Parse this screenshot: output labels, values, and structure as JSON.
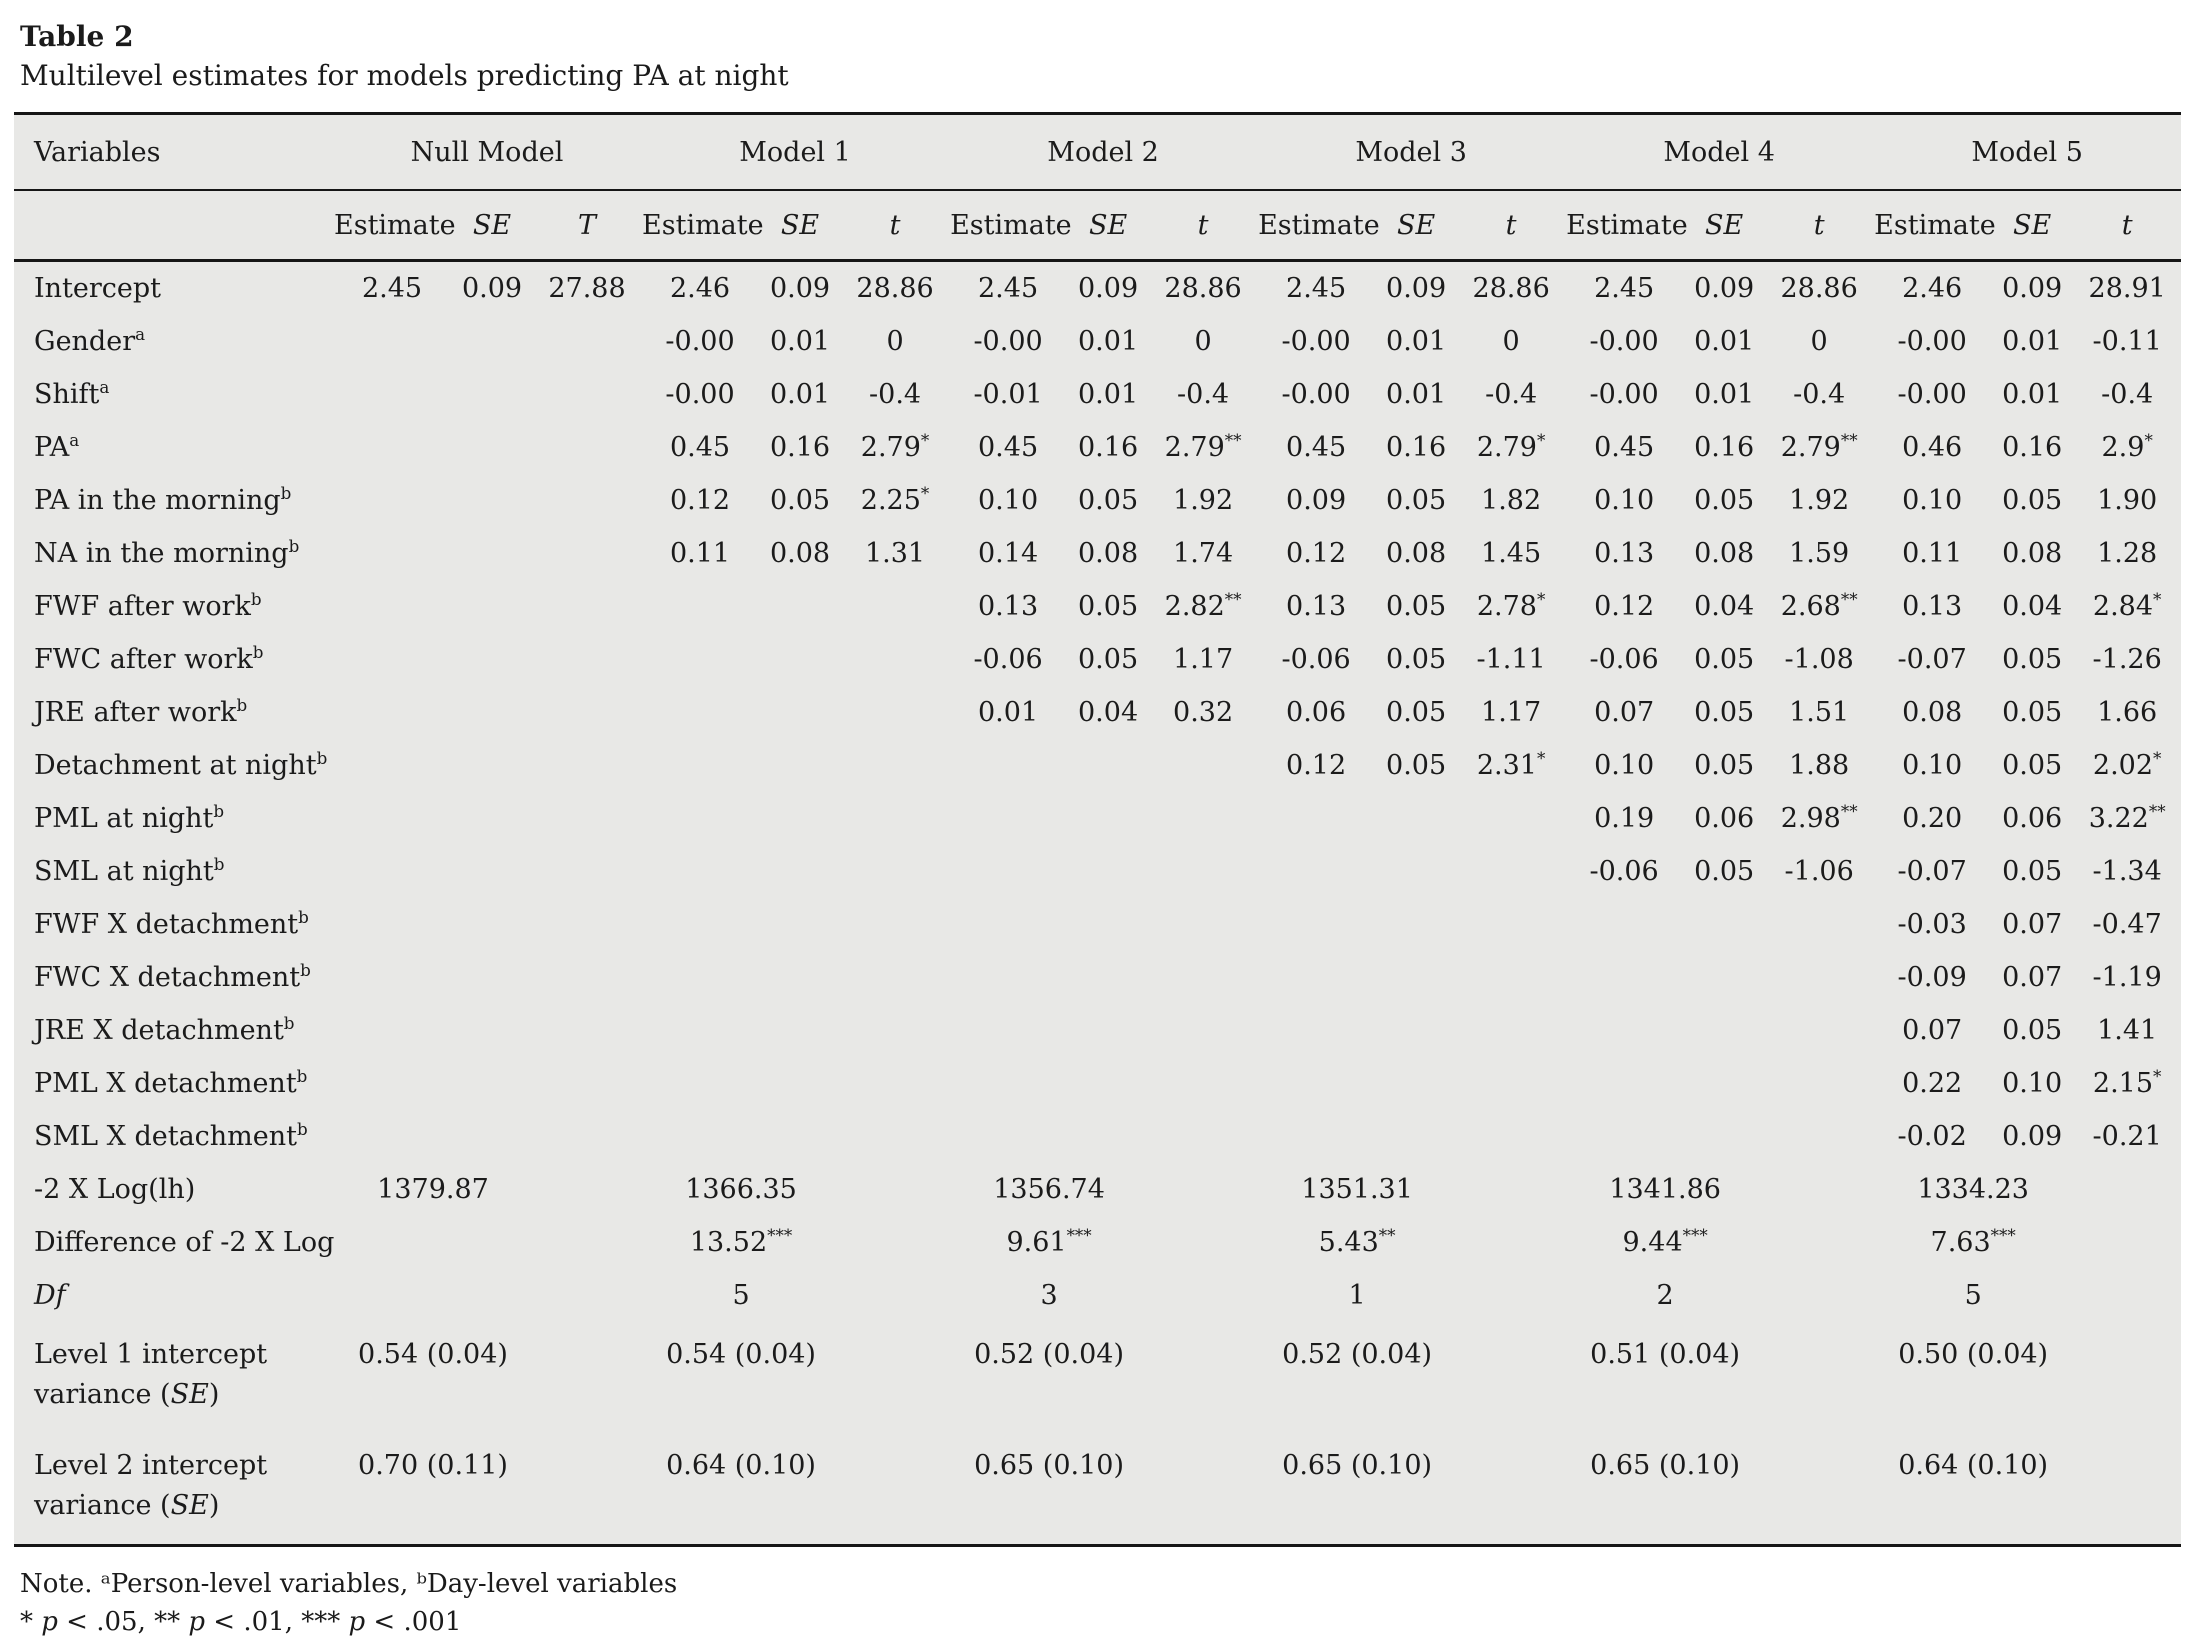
{
  "title": "Table 2",
  "subtitle": "Multilevel estimates for models predicting PA at night",
  "table": {
    "variables_header": "Variables",
    "groups": [
      {
        "name": "Null Model",
        "cols": [
          "Estimate",
          "SE",
          "T"
        ]
      },
      {
        "name": "Model 1",
        "cols": [
          "Estimate",
          "SE",
          "t"
        ]
      },
      {
        "name": "Model 2",
        "cols": [
          "Estimate",
          "SE",
          "t"
        ]
      },
      {
        "name": "Model 3",
        "cols": [
          "Estimate",
          "SE",
          "t"
        ]
      },
      {
        "name": "Model 4",
        "cols": [
          "Estimate",
          "SE",
          "t"
        ]
      },
      {
        "name": "Model 5",
        "cols": [
          "Estimate",
          "SE",
          "t"
        ]
      }
    ],
    "coefficient_rows": [
      {
        "label": "Intercept",
        "sup": "",
        "cells": [
          [
            "2.45",
            "0.09",
            "27.88"
          ],
          [
            "2.46",
            "0.09",
            "28.86"
          ],
          [
            "2.45",
            "0.09",
            "28.86"
          ],
          [
            "2.45",
            "0.09",
            "28.86"
          ],
          [
            "2.45",
            "0.09",
            "28.86"
          ],
          [
            "2.46",
            "0.09",
            "28.91"
          ]
        ]
      },
      {
        "label": "Gender",
        "sup": "a",
        "cells": [
          null,
          [
            "-0.00",
            "0.01",
            "0"
          ],
          [
            "-0.00",
            "0.01",
            "0"
          ],
          [
            "-0.00",
            "0.01",
            "0"
          ],
          [
            "-0.00",
            "0.01",
            "0"
          ],
          [
            "-0.00",
            "0.01",
            "-0.11"
          ]
        ]
      },
      {
        "label": "Shift",
        "sup": "a",
        "cells": [
          null,
          [
            "-0.00",
            "0.01",
            "-0.4"
          ],
          [
            "-0.01",
            "0.01",
            "-0.4"
          ],
          [
            "-0.00",
            "0.01",
            "-0.4"
          ],
          [
            "-0.00",
            "0.01",
            "-0.4"
          ],
          [
            "-0.00",
            "0.01",
            "-0.4"
          ]
        ]
      },
      {
        "label": "PA",
        "sup": "a",
        "cells": [
          null,
          [
            "0.45",
            "0.16",
            "2.79*"
          ],
          [
            "0.45",
            "0.16",
            "2.79**"
          ],
          [
            "0.45",
            "0.16",
            "2.79*"
          ],
          [
            "0.45",
            "0.16",
            "2.79**"
          ],
          [
            "0.46",
            "0.16",
            "2.9*"
          ]
        ]
      },
      {
        "label": "PA in the morning",
        "sup": "b",
        "cells": [
          null,
          [
            "0.12",
            "0.05",
            "2.25*"
          ],
          [
            "0.10",
            "0.05",
            "1.92"
          ],
          [
            "0.09",
            "0.05",
            "1.82"
          ],
          [
            "0.10",
            "0.05",
            "1.92"
          ],
          [
            "0.10",
            "0.05",
            "1.90"
          ]
        ]
      },
      {
        "label": "NA in the morning",
        "sup": "b",
        "cells": [
          null,
          [
            "0.11",
            "0.08",
            "1.31"
          ],
          [
            "0.14",
            "0.08",
            "1.74"
          ],
          [
            "0.12",
            "0.08",
            "1.45"
          ],
          [
            "0.13",
            "0.08",
            "1.59"
          ],
          [
            "0.11",
            "0.08",
            "1.28"
          ]
        ]
      },
      {
        "label": "FWF after work",
        "sup": "b",
        "cells": [
          null,
          null,
          [
            "0.13",
            "0.05",
            "2.82**"
          ],
          [
            "0.13",
            "0.05",
            "2.78*"
          ],
          [
            "0.12",
            "0.04",
            "2.68**"
          ],
          [
            "0.13",
            "0.04",
            "2.84*"
          ]
        ]
      },
      {
        "label": "FWC after work",
        "sup": "b",
        "cells": [
          null,
          null,
          [
            "-0.06",
            "0.05",
            "1.17"
          ],
          [
            "-0.06",
            "0.05",
            "-1.11"
          ],
          [
            "-0.06",
            "0.05",
            "-1.08"
          ],
          [
            "-0.07",
            "0.05",
            "-1.26"
          ]
        ]
      },
      {
        "label": "JRE after work",
        "sup": "b",
        "cells": [
          null,
          null,
          [
            "0.01",
            "0.04",
            "0.32"
          ],
          [
            "0.06",
            "0.05",
            "1.17"
          ],
          [
            "0.07",
            "0.05",
            "1.51"
          ],
          [
            "0.08",
            "0.05",
            "1.66"
          ]
        ]
      },
      {
        "label": "Detachment at night",
        "sup": "b",
        "cells": [
          null,
          null,
          null,
          [
            "0.12",
            "0.05",
            "2.31*"
          ],
          [
            "0.10",
            "0.05",
            "1.88"
          ],
          [
            "0.10",
            "0.05",
            "2.02*"
          ]
        ]
      },
      {
        "label": "PML at night",
        "sup": "b",
        "cells": [
          null,
          null,
          null,
          null,
          [
            "0.19",
            "0.06",
            "2.98**"
          ],
          [
            "0.20",
            "0.06",
            "3.22**"
          ]
        ]
      },
      {
        "label": "SML at night",
        "sup": "b",
        "cells": [
          null,
          null,
          null,
          null,
          [
            "-0.06",
            "0.05",
            "-1.06"
          ],
          [
            "-0.07",
            "0.05",
            "-1.34"
          ]
        ]
      },
      {
        "label": "FWF X detachment",
        "sup": "b",
        "cells": [
          null,
          null,
          null,
          null,
          null,
          [
            "-0.03",
            "0.07",
            "-0.47"
          ]
        ]
      },
      {
        "label": "FWC X detachment",
        "sup": "b",
        "cells": [
          null,
          null,
          null,
          null,
          null,
          [
            "-0.09",
            "0.07",
            "-1.19"
          ]
        ]
      },
      {
        "label": "JRE X detachment",
        "sup": "b",
        "cells": [
          null,
          null,
          null,
          null,
          null,
          [
            "0.07",
            "0.05",
            "1.41"
          ]
        ]
      },
      {
        "label": "PML X detachment",
        "sup": "b",
        "cells": [
          null,
          null,
          null,
          null,
          null,
          [
            "0.22",
            "0.10",
            "2.15*"
          ]
        ]
      },
      {
        "label": "SML X detachment",
        "sup": "b",
        "cells": [
          null,
          null,
          null,
          null,
          null,
          [
            "-0.02",
            "0.09",
            "-0.21"
          ]
        ]
      }
    ],
    "summary_rows": [
      {
        "label_lines": [
          "-2 X Log(lh)"
        ],
        "italic_label": false,
        "values": [
          "1379.87",
          "1366.35",
          "1356.74",
          "1351.31",
          "1341.86",
          "1334.23"
        ]
      },
      {
        "label_lines": [
          "Difference of -2 X Log"
        ],
        "italic_label": false,
        "values": [
          "",
          "13.52***",
          "9.61***",
          "5.43**",
          "9.44***",
          "7.63***"
        ]
      },
      {
        "label_lines": [
          "Df"
        ],
        "italic_label": true,
        "values": [
          "",
          "5",
          "3",
          "1",
          "2",
          "5"
        ]
      },
      {
        "label_lines": [
          "Level 1 intercept",
          "variance (SE)"
        ],
        "italic_label": false,
        "values": [
          "0.54 (0.04)",
          "0.54 (0.04)",
          "0.52 (0.04)",
          "0.52 (0.04)",
          "0.51 (0.04)",
          "0.50 (0.04)"
        ]
      },
      {
        "label_lines": [
          "Level 2 intercept",
          "variance (SE)"
        ],
        "italic_label": false,
        "values": [
          "0.70 (0.11)",
          "0.64 (0.10)",
          "0.65 (0.10)",
          "0.65 (0.10)",
          "0.65 (0.10)",
          "0.64 (0.10)"
        ]
      }
    ]
  },
  "notes": [
    "Note. ᵃPerson-level variables, ᵇDay-level variables",
    "* p < .05, ** p < .01, *** p < .001"
  ],
  "colors": {
    "table_bg": "#e8e8e6",
    "text": "#1b1b1b",
    "rule": "#161616"
  }
}
